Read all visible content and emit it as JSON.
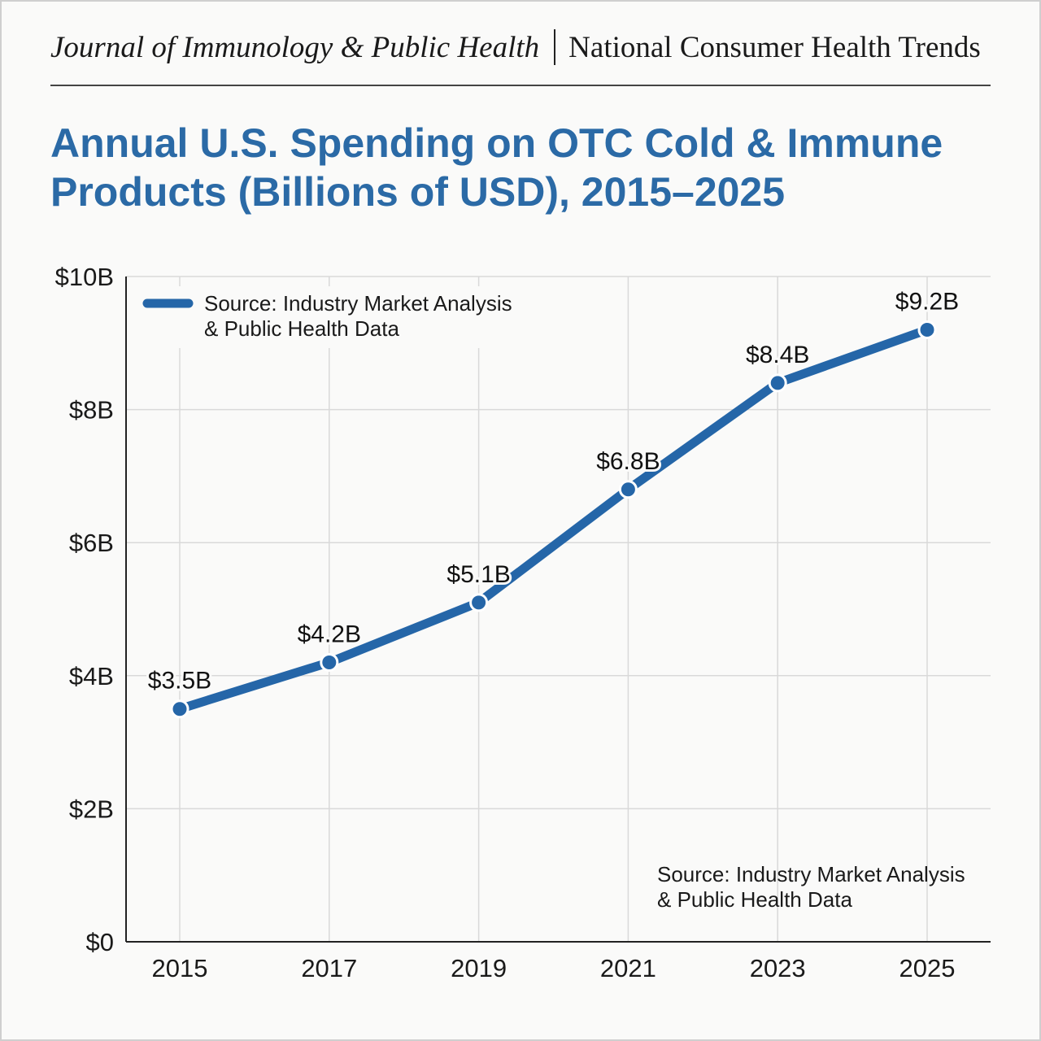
{
  "header": {
    "journal": "Journal of Immunology & Public Health",
    "section": "National Consumer Health Trends"
  },
  "chart_data": {
    "type": "line",
    "title": "Annual U.S. Spending on OTC Cold & Immune Products (Billions of USD), 2015–2025",
    "xlabel": "",
    "ylabel": "",
    "x": [
      2015,
      2017,
      2019,
      2021,
      2023,
      2025
    ],
    "x_tick_labels": [
      "2015",
      "2017",
      "2019",
      "2021",
      "2023",
      "2025"
    ],
    "series": [
      {
        "name": "Source: Industry Market Analysis & Public Health Data",
        "values": [
          3.5,
          4.2,
          5.1,
          6.8,
          8.4,
          9.2
        ],
        "data_labels": [
          "$3.5B",
          "$4.2B",
          "$5.1B",
          "$6.8B",
          "$8.4B",
          "$9.2B"
        ],
        "color": "#2566a8"
      }
    ],
    "legend": {
      "line1": "Source: Industry Market Analysis",
      "line2": "& Public Health Data",
      "placement": "top-left"
    },
    "ylim": [
      0,
      10
    ],
    "xlim": [
      2015,
      2025
    ],
    "y_ticks": [
      0,
      2,
      4,
      6,
      8,
      10
    ],
    "y_tick_labels": [
      "$0",
      "$2B",
      "$4B",
      "$6B",
      "$8B",
      "$10B"
    ],
    "grid": true,
    "annotation": {
      "line1": "Source: Industry Market Analysis",
      "line2": "& Public Health Data",
      "placement": "bottom-right"
    }
  }
}
